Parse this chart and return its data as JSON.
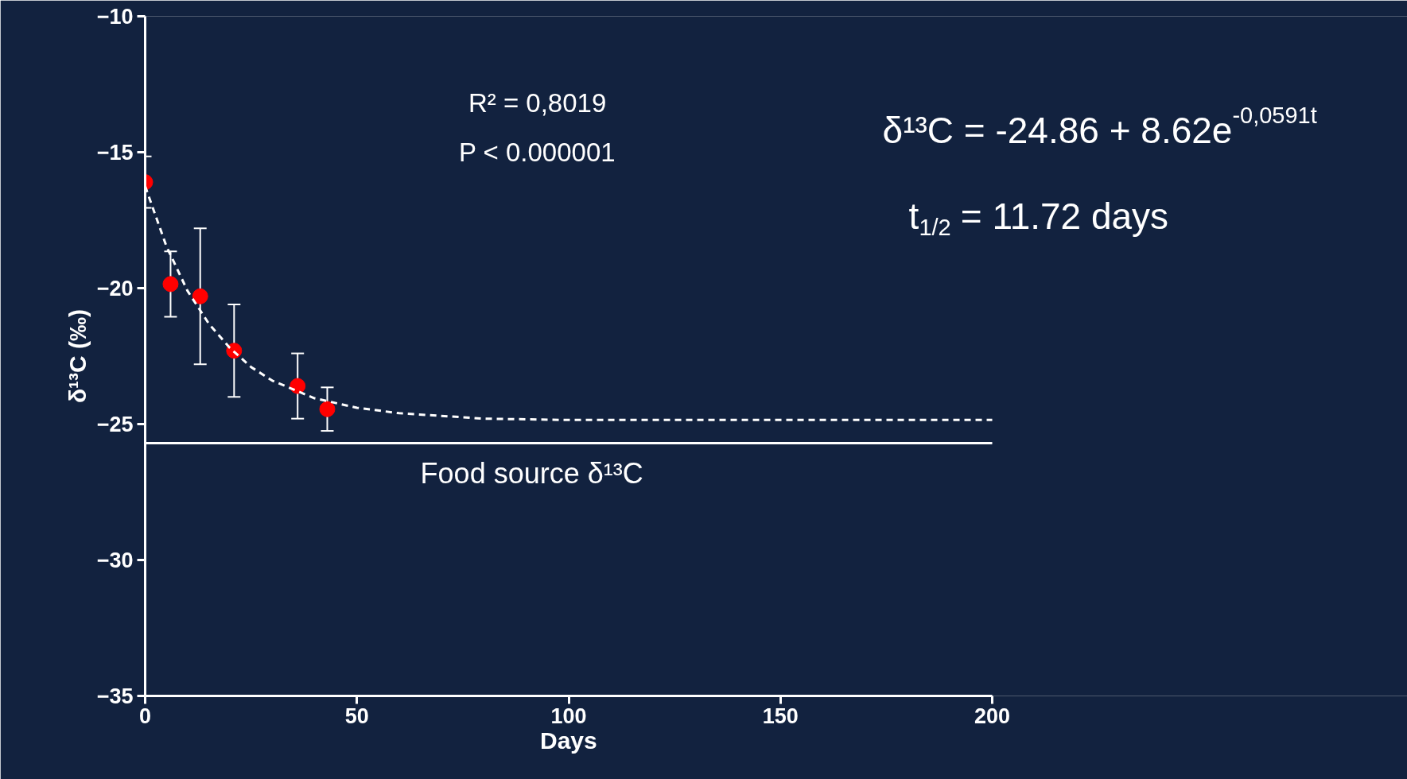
{
  "chart_data": {
    "type": "scatter",
    "xlabel": "Days",
    "ylabel": "δ¹³C (‰)",
    "xlim": [
      0,
      200
    ],
    "xticks": [
      0,
      50,
      100,
      150,
      200
    ],
    "ylim": [
      -35,
      -10
    ],
    "yticks": [
      -35,
      -30,
      -25,
      -20,
      -15,
      -10
    ],
    "grid": false,
    "marker": "circle",
    "series": [
      {
        "color": "#ff0000",
        "x": [
          0,
          6,
          13,
          21,
          36,
          43
        ],
        "values": [
          -16.1,
          -19.85,
          -20.3,
          -22.3,
          -23.6,
          -24.45
        ],
        "errors": [
          0.95,
          1.2,
          2.5,
          1.7,
          1.2,
          0.8
        ]
      },
      {
        "type": "line",
        "color": "#ffffff",
        "line_style": "dashed",
        "marker": "none",
        "x": [
          0,
          5,
          10,
          15,
          20,
          25,
          30,
          40,
          50,
          60,
          80,
          100,
          150,
          200
        ],
        "values": [
          -16.25,
          -18.45,
          -20.1,
          -21.3,
          -22.2,
          -22.9,
          -23.4,
          -24.05,
          -24.4,
          -24.6,
          -24.8,
          -24.85,
          -24.85,
          -24.85
        ]
      }
    ],
    "ref_lines": [
      {
        "axis": "y",
        "value": -25.7,
        "label": "Food source δ¹³C",
        "color": "#ffffff",
        "line_style": "solid"
      }
    ],
    "annotations": [
      "R² = 0,8019",
      "P < 0.000001",
      "δ¹³C = -24.86 + 8.62e$^{-0,0591t}$",
      "t$_{1/2}$ = 11.72 days"
    ]
  }
}
